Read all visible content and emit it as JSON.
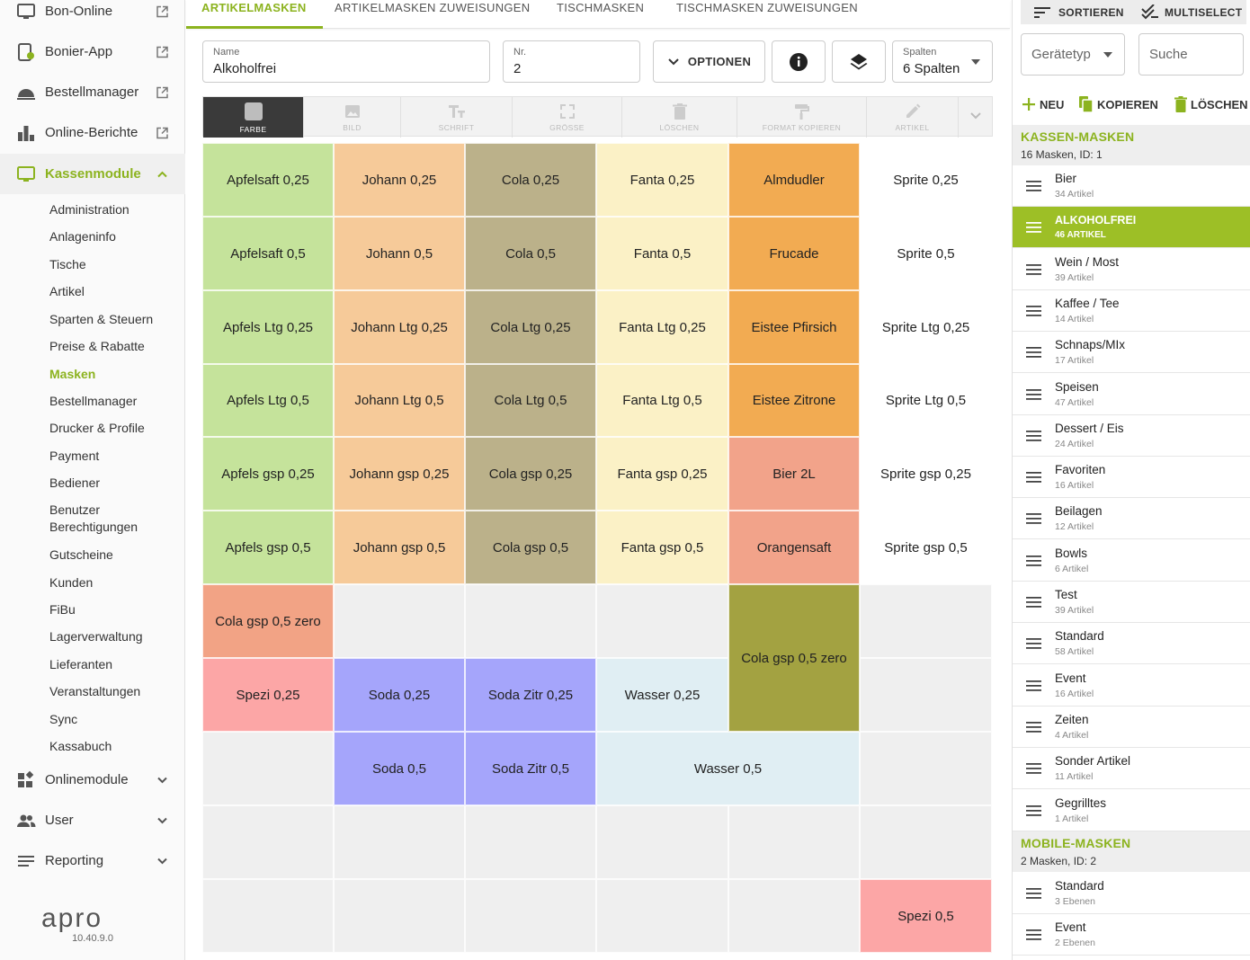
{
  "sidebar": {
    "apps": [
      {
        "label": "Bon-Online",
        "icon": "monitor-icon"
      },
      {
        "label": "Bonier-App",
        "icon": "tablet-icon"
      },
      {
        "label": "Bestellmanager",
        "icon": "cloche-icon"
      },
      {
        "label": "Online-Berichte",
        "icon": "bar-chart-icon"
      }
    ],
    "kassenmodule": {
      "label": "Kassenmodule",
      "items": [
        "Administration",
        "Anlageninfo",
        "Tische",
        "Artikel",
        "Sparten & Steuern",
        "Preise & Rabatte",
        "Masken",
        "Bestellmanager",
        "Drucker & Profile",
        "Payment",
        "Bediener",
        "Benutzer Berechtigungen",
        "Gutscheine",
        "Kunden",
        "FiBu",
        "Lagerverwaltung",
        "Lieferanten",
        "Veranstaltungen",
        "Sync",
        "Kassabuch"
      ],
      "active_item": "Masken"
    },
    "bottom": [
      {
        "label": "Onlinemodule",
        "icon": "widgets-icon"
      },
      {
        "label": "User",
        "icon": "users-icon"
      },
      {
        "label": "Reporting",
        "icon": "lines-icon"
      }
    ],
    "logo": "apro",
    "version": "10.40.9.0"
  },
  "tabs": [
    "ARTIKELMASKEN",
    "ARTIKELMASKEN ZUWEISUNGEN",
    "TISCHMASKEN",
    "TISCHMASKEN ZUWEISUNGEN"
  ],
  "form": {
    "name_label": "Name",
    "name_value": "Alkoholfrei",
    "nr_label": "Nr.",
    "nr_value": "2",
    "options_label": "OPTIONEN",
    "spalten_label": "Spalten",
    "spalten_value": "6 Spalten"
  },
  "toolbar": [
    "FARBE",
    "BILD",
    "SCHRIFT",
    "GRÖSSE",
    "LÖSCHEN",
    "FORMAT KOPIEREN",
    "ARTIKEL"
  ],
  "grid": {
    "columns": 6,
    "rows": 11,
    "cells": [
      {
        "r": 0,
        "c": 0,
        "text": "Apfelsaft 0,25",
        "color": "#c5e39b"
      },
      {
        "r": 0,
        "c": 1,
        "text": "Johann 0,25",
        "color": "#f6ca99"
      },
      {
        "r": 0,
        "c": 2,
        "text": "Cola 0,25",
        "color": "#bbb18a"
      },
      {
        "r": 0,
        "c": 3,
        "text": "Fanta 0,25",
        "color": "#fbf1c6"
      },
      {
        "r": 0,
        "c": 4,
        "text": "Almdudler",
        "color": "#f2ab52"
      },
      {
        "r": 0,
        "c": 5,
        "text": "Sprite 0,25",
        "color": "#ffffff"
      },
      {
        "r": 1,
        "c": 0,
        "text": "Apfelsaft 0,5",
        "color": "#c5e39b"
      },
      {
        "r": 1,
        "c": 1,
        "text": "Johann 0,5",
        "color": "#f6ca99"
      },
      {
        "r": 1,
        "c": 2,
        "text": "Cola 0,5",
        "color": "#bbb18a"
      },
      {
        "r": 1,
        "c": 3,
        "text": "Fanta 0,5",
        "color": "#fbf1c6"
      },
      {
        "r": 1,
        "c": 4,
        "text": "Frucade",
        "color": "#f2ab52"
      },
      {
        "r": 1,
        "c": 5,
        "text": "Sprite 0,5",
        "color": "#ffffff"
      },
      {
        "r": 2,
        "c": 0,
        "text": "Apfels Ltg 0,25",
        "color": "#c5e39b"
      },
      {
        "r": 2,
        "c": 1,
        "text": "Johann Ltg 0,25",
        "color": "#f6ca99"
      },
      {
        "r": 2,
        "c": 2,
        "text": "Cola Ltg 0,25",
        "color": "#bbb18a"
      },
      {
        "r": 2,
        "c": 3,
        "text": "Fanta Ltg 0,25",
        "color": "#fbf1c6"
      },
      {
        "r": 2,
        "c": 4,
        "text": "Eistee Pfirsich",
        "color": "#f2ab52"
      },
      {
        "r": 2,
        "c": 5,
        "text": "Sprite Ltg 0,25",
        "color": "#ffffff"
      },
      {
        "r": 3,
        "c": 0,
        "text": "Apfels Ltg 0,5",
        "color": "#c5e39b"
      },
      {
        "r": 3,
        "c": 1,
        "text": "Johann Ltg 0,5",
        "color": "#f6ca99"
      },
      {
        "r": 3,
        "c": 2,
        "text": "Cola Ltg 0,5",
        "color": "#bbb18a"
      },
      {
        "r": 3,
        "c": 3,
        "text": "Fanta Ltg 0,5",
        "color": "#fbf1c6"
      },
      {
        "r": 3,
        "c": 4,
        "text": "Eistee Zitrone",
        "color": "#f2ab52"
      },
      {
        "r": 3,
        "c": 5,
        "text": "Sprite Ltg 0,5",
        "color": "#ffffff"
      },
      {
        "r": 4,
        "c": 0,
        "text": "Apfels gsp 0,25",
        "color": "#c5e39b"
      },
      {
        "r": 4,
        "c": 1,
        "text": "Johann gsp 0,25",
        "color": "#f6ca99"
      },
      {
        "r": 4,
        "c": 2,
        "text": "Cola gsp 0,25",
        "color": "#bbb18a"
      },
      {
        "r": 4,
        "c": 3,
        "text": "Fanta gsp 0,25",
        "color": "#fbf1c6"
      },
      {
        "r": 4,
        "c": 4,
        "text": "Bier 2L",
        "color": "#f2a38a"
      },
      {
        "r": 4,
        "c": 5,
        "text": "Sprite gsp 0,25",
        "color": "#ffffff"
      },
      {
        "r": 5,
        "c": 0,
        "text": "Apfels gsp 0,5",
        "color": "#c5e39b"
      },
      {
        "r": 5,
        "c": 1,
        "text": "Johann gsp 0,5",
        "color": "#f6ca99"
      },
      {
        "r": 5,
        "c": 2,
        "text": "Cola gsp 0,5",
        "color": "#bbb18a"
      },
      {
        "r": 5,
        "c": 3,
        "text": "Fanta gsp 0,5",
        "color": "#fbf1c6"
      },
      {
        "r": 5,
        "c": 4,
        "text": "Orangensaft",
        "color": "#f2a38a"
      },
      {
        "r": 5,
        "c": 5,
        "text": "Sprite gsp 0,5",
        "color": "#ffffff"
      },
      {
        "r": 6,
        "c": 0,
        "text": "Cola gsp 0,5 zero",
        "color": "#f2a385"
      },
      {
        "r": 6,
        "c": 4,
        "text": "Cola gsp 0,5 zero",
        "color": "#a3a241",
        "rowspan": 2
      },
      {
        "r": 7,
        "c": 0,
        "text": "Spezi 0,25",
        "color": "#fca6a6"
      },
      {
        "r": 7,
        "c": 1,
        "text": "Soda 0,25",
        "color": "#a5a5fb"
      },
      {
        "r": 7,
        "c": 2,
        "text": "Soda Zitr 0,25",
        "color": "#a5a5fb"
      },
      {
        "r": 7,
        "c": 3,
        "text": "Wasser 0,25",
        "color": "#e0eef3"
      },
      {
        "r": 8,
        "c": 1,
        "text": "Soda 0,5",
        "color": "#a5a5fb"
      },
      {
        "r": 8,
        "c": 2,
        "text": "Soda Zitr 0,5",
        "color": "#a5a5fb"
      },
      {
        "r": 8,
        "c": 3,
        "text": "Wasser 0,5",
        "color": "#e0eef3",
        "colspan": 2
      },
      {
        "r": 10,
        "c": 5,
        "text": "Spezi 0,5",
        "color": "#fca6a6"
      }
    ]
  },
  "right_panel": {
    "sortieren": "SORTIEREN",
    "multiselect": "MULTISELECT",
    "geraetetyp": "Gerätetyp",
    "suche": "Suche",
    "neu": "NEU",
    "kopieren": "KOPIEREN",
    "loeschen": "LÖSCHEN",
    "kassen_title": "KASSEN-MASKEN",
    "kassen_sub": "16 Masken, ID: 1",
    "kassen_masks": [
      {
        "name": "Bier",
        "count": "34 Artikel"
      },
      {
        "name": "ALKOHOLFREI",
        "count": "46 ARTIKEL",
        "selected": true
      },
      {
        "name": "Wein / Most",
        "count": "39 Artikel"
      },
      {
        "name": "Kaffee / Tee",
        "count": "14 Artikel"
      },
      {
        "name": "Schnaps/MIx",
        "count": "17 Artikel"
      },
      {
        "name": "Speisen",
        "count": "47 Artikel"
      },
      {
        "name": "Dessert / Eis",
        "count": "24 Artikel"
      },
      {
        "name": "Favoriten",
        "count": "16 Artikel"
      },
      {
        "name": "Beilagen",
        "count": "12 Artikel"
      },
      {
        "name": "Bowls",
        "count": "6 Artikel"
      },
      {
        "name": "Test",
        "count": "39 Artikel"
      },
      {
        "name": "Standard",
        "count": "58 Artikel"
      },
      {
        "name": "Event",
        "count": "16 Artikel"
      },
      {
        "name": "Zeiten",
        "count": "4 Artikel"
      },
      {
        "name": "Sonder Artikel",
        "count": "11 Artikel"
      },
      {
        "name": "Gegrilltes",
        "count": "1 Artikel"
      }
    ],
    "mobile_title": "MOBILE-MASKEN",
    "mobile_sub": "2 Masken, ID: 2",
    "mobile_masks": [
      {
        "name": "Standard",
        "count": "3 Ebenen"
      },
      {
        "name": "Event",
        "count": "2 Ebenen"
      }
    ]
  },
  "colors": {
    "accent": "#8cb31f",
    "selected_row": "#9dbf26",
    "empty_cell": "#efefef"
  }
}
